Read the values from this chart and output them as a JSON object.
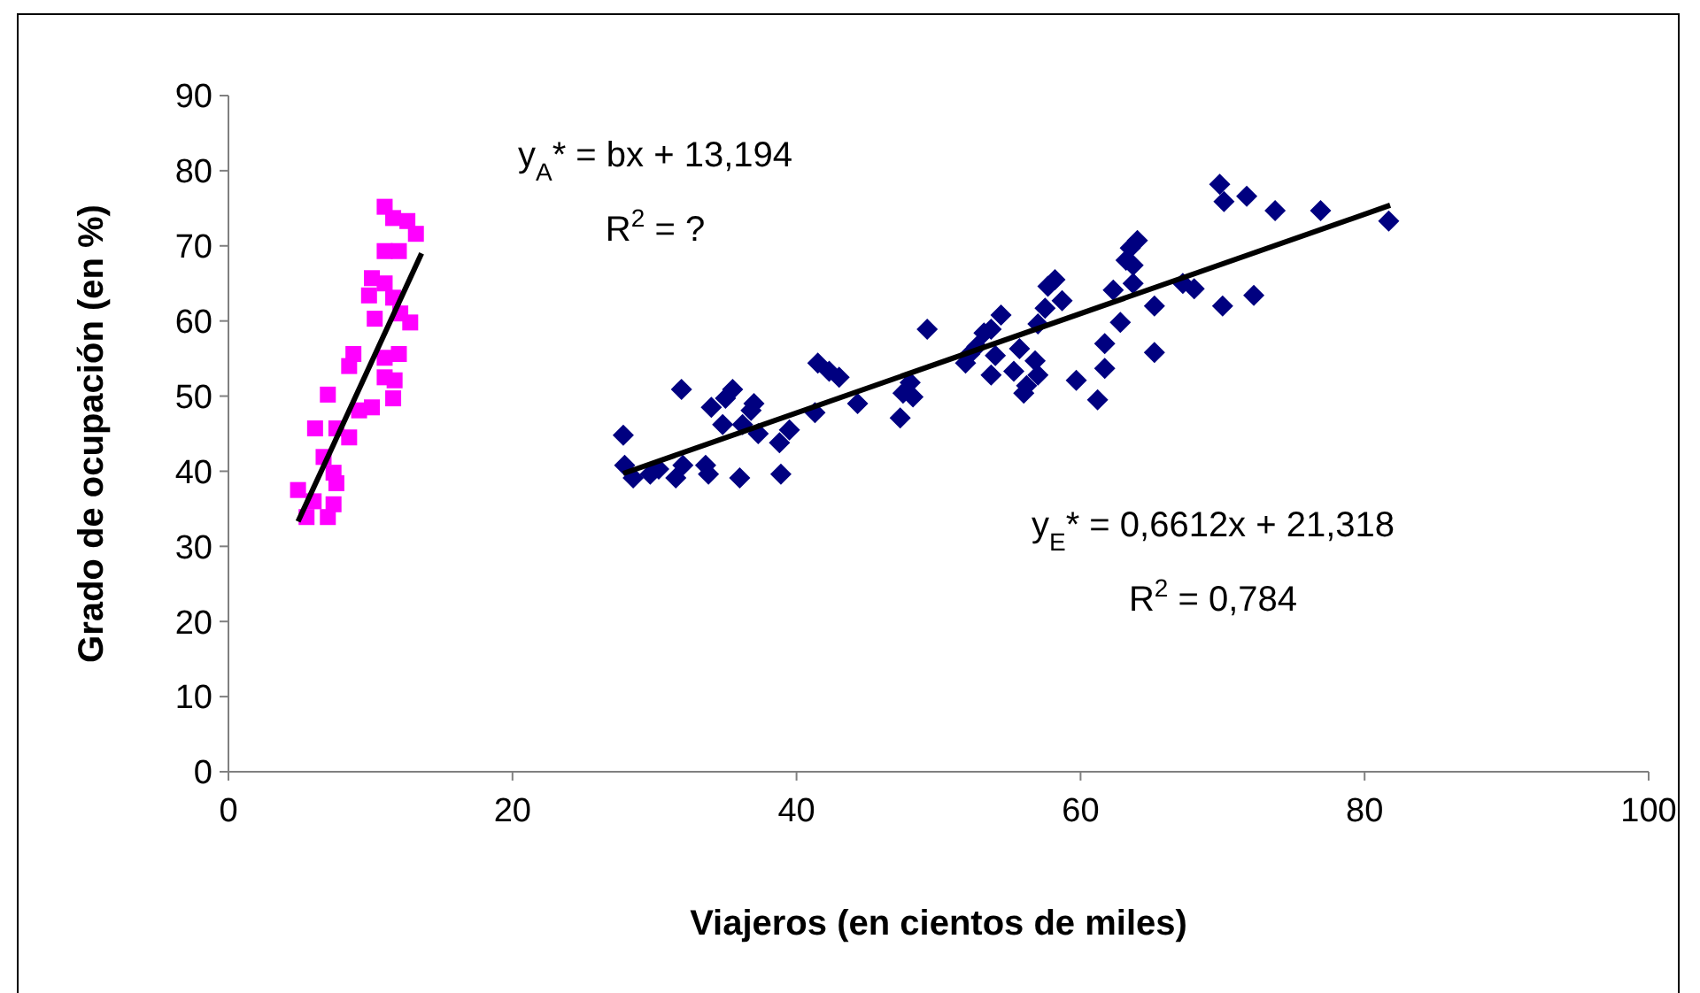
{
  "chart_data": {
    "type": "scatter",
    "xlabel": "Viajeros (en cientos de miles)",
    "ylabel": "Grado de ocupación (en %)",
    "xlim": [
      0,
      100
    ],
    "xticks": [
      0,
      20,
      40,
      60,
      80,
      100
    ],
    "ylim": [
      0,
      90
    ],
    "yticks": [
      0,
      10,
      20,
      30,
      40,
      50,
      60,
      70,
      80,
      90
    ],
    "grid": false,
    "series": [
      {
        "marker": "square",
        "color": "#ff00ff",
        "x": [
          11.0,
          11.6,
          12.6,
          13.2,
          11.0,
          12.0,
          10.1,
          11.0,
          9.9,
          11.6,
          12.8,
          10.3,
          8.8,
          8.5,
          11.0,
          12.0,
          11.0,
          11.7,
          11.6,
          7.0,
          10.1,
          9.2,
          6.1,
          8.5,
          7.6,
          6.7,
          7.4,
          7.6,
          4.9,
          6.0,
          5.5,
          7.4,
          7.0,
          12.1
        ],
        "values": [
          75.2,
          73.7,
          73.3,
          71.6,
          69.3,
          69.3,
          65.7,
          65.0,
          63.4,
          63.1,
          59.8,
          60.3,
          55.6,
          54.0,
          55.1,
          55.6,
          52.5,
          52.1,
          49.7,
          50.2,
          48.5,
          48.1,
          45.7,
          44.5,
          45.7,
          41.9,
          39.8,
          38.4,
          37.5,
          36.0,
          33.9,
          35.6,
          33.9,
          61.0
        ]
      },
      {
        "marker": "diamond",
        "color": "#000080",
        "x": [
          27.8,
          27.9,
          28.5,
          29.7,
          30.3,
          31.5,
          32.0,
          31.9,
          33.6,
          33.8,
          34.0,
          34.8,
          35.0,
          35.5,
          36.0,
          36.2,
          36.8,
          37.0,
          37.3,
          38.8,
          38.9,
          39.5,
          41.3,
          41.5,
          42.3,
          43.0,
          44.3,
          47.3,
          47.5,
          48.0,
          48.2,
          49.2,
          51.9,
          52.2,
          52.7,
          53.2,
          53.7,
          53.7,
          54.0,
          54.4,
          55.3,
          55.7,
          56.0,
          56.2,
          56.8,
          57.0,
          57.0,
          57.5,
          57.7,
          58.2,
          58.7,
          59.7,
          61.2,
          61.7,
          61.7,
          62.3,
          62.8,
          63.2,
          63.5,
          63.7,
          64.0,
          63.7,
          65.2,
          65.2,
          67.2,
          68.0,
          69.8,
          70.1,
          71.7,
          73.7,
          76.9,
          70.0,
          72.2,
          81.7
        ],
        "values": [
          44.8,
          40.8,
          39.1,
          39.6,
          40.3,
          39.1,
          40.8,
          50.9,
          40.8,
          39.6,
          48.5,
          46.2,
          49.7,
          50.9,
          39.1,
          46.2,
          48.1,
          49.0,
          45.0,
          43.8,
          39.6,
          45.5,
          47.8,
          54.4,
          53.3,
          52.5,
          49.0,
          47.1,
          50.4,
          51.8,
          49.9,
          58.9,
          54.4,
          55.6,
          56.6,
          58.4,
          58.9,
          52.8,
          55.4,
          60.8,
          53.3,
          56.3,
          50.4,
          51.4,
          54.7,
          52.8,
          59.6,
          61.7,
          64.6,
          65.5,
          62.7,
          52.1,
          49.5,
          57.0,
          53.7,
          64.1,
          59.8,
          68.1,
          69.7,
          67.4,
          70.7,
          65.0,
          62.0,
          55.8,
          65.0,
          64.3,
          78.2,
          75.9,
          76.6,
          74.7,
          74.7,
          62.0,
          63.4,
          73.3
        ]
      },
      {
        "type": "line",
        "marker": "none",
        "color": "#000000",
        "x": [
          4.9,
          13.6
        ],
        "values": [
          33.3,
          69.0
        ]
      },
      {
        "type": "line",
        "marker": "none",
        "color": "#000000",
        "x": [
          27.8,
          81.8
        ],
        "values": [
          39.7,
          75.4
        ]
      }
    ],
    "annotations": [
      "y$_{A}$* = bx + 13,194",
      "R$^{2}$ = ?",
      "y$_{E}$* = 0,6612x + 21,318",
      "R$^{2}$ = 0,784"
    ]
  }
}
